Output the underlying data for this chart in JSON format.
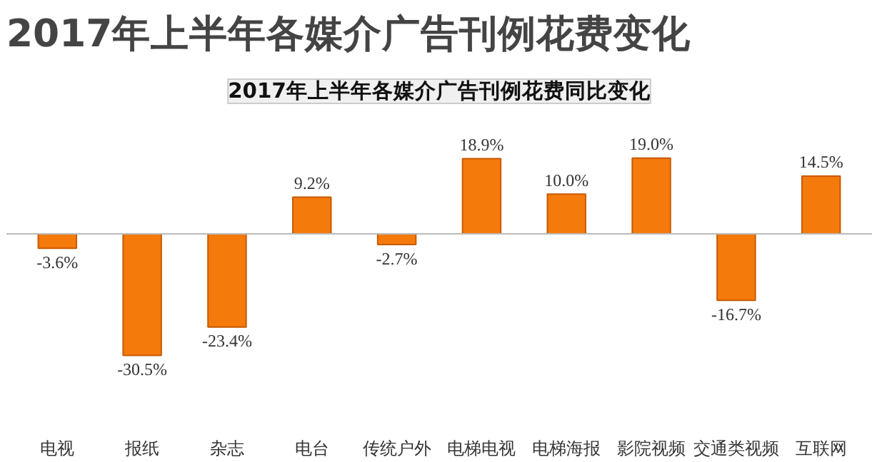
{
  "chart_data": {
    "type": "bar",
    "title": "2017年上半年各媒介广告刊例花费变化",
    "subtitle": "2017年上半年各媒介广告刊例花费同比变化",
    "categories": [
      "电视",
      "报纸",
      "杂志",
      "电台",
      "传统户外",
      "电梯电视",
      "电梯海报",
      "影院视频",
      "交通类视频",
      "互联网"
    ],
    "values": [
      -3.6,
      -30.5,
      -23.4,
      9.2,
      -2.7,
      18.9,
      10.0,
      19.0,
      -16.7,
      14.5
    ],
    "value_labels": [
      "-3.6%",
      "-30.5%",
      "-23.4%",
      "9.2%",
      "-2.7%",
      "18.9%",
      "10.0%",
      "19.0%",
      "-16.7%",
      "14.5%"
    ],
    "color": "#f47a0c"
  }
}
